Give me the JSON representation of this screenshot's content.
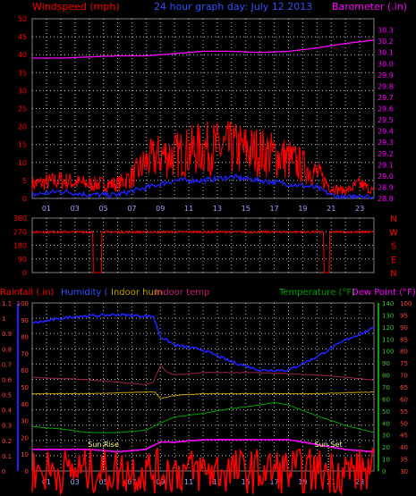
{
  "header": {
    "left_title": "Windspeed (mph)",
    "center_title": "24 hour graph day: July 12 2013",
    "right_title": "Barometer (.in)"
  },
  "colors": {
    "background": "#000000",
    "frame": "#808080",
    "grid": "#c0c0c0",
    "wind_left_axis": "#ff0000",
    "barometer": "#ff00ff",
    "title_blue": "#3050ff",
    "dew_point": "#ff00ff",
    "temperature": "#00a000",
    "rainfall": "#ff0000",
    "humidity": "#2020ff",
    "indoor_hum": "#c0a000",
    "indoor_temp": "#a02050",
    "sun_label": "#ffff80"
  },
  "x_ticks": [
    "01",
    "03",
    "05",
    "07",
    "09",
    "11",
    "13",
    "15",
    "17",
    "19",
    "21",
    "23"
  ],
  "direction_labels": [
    "N",
    "W",
    "S",
    "E",
    "N"
  ],
  "sun": {
    "rise_label": "Sun Rise",
    "set_label": "Sun Set",
    "rise_hour": 5.0,
    "set_hour": 20.8
  },
  "bottom_header": {
    "rainfall_label": "Rainfall (.in)",
    "humidity_label": "Humidity (",
    "indoor_hum_label": "Indoor hum",
    "indoor_temp_label": "Indoor temp",
    "temperature_label": "Temperature (°F)",
    "dew_point_label": "Dew Point (°F)"
  },
  "chart_data": [
    {
      "type": "line",
      "panel": "wind-barometer",
      "x_range": [
        0,
        24
      ],
      "y_left": {
        "label": "Windspeed (mph)",
        "range": [
          0,
          50
        ],
        "ticks": [
          0,
          5,
          10,
          15,
          20,
          25,
          30,
          35,
          40,
          45,
          50
        ]
      },
      "y_right": {
        "label": "Barometer (.in)",
        "range": [
          28.8,
          30.4
        ],
        "ticks": [
          "28.8",
          "28.9",
          "29.0",
          "29.1",
          "29.2",
          "29.3",
          "29.4",
          "29.5",
          "29.6",
          "29.7",
          "29.8",
          "29.9",
          "30.0",
          "30.1",
          "30.2",
          "30.3"
        ]
      },
      "series": [
        {
          "name": "Barometer",
          "axis": "right",
          "x": [
            0,
            2,
            4,
            6,
            8,
            9,
            10,
            12,
            14,
            16,
            18,
            20,
            22,
            24
          ],
          "values": [
            30.05,
            30.05,
            30.06,
            30.07,
            30.07,
            30.08,
            30.09,
            30.11,
            30.11,
            30.1,
            30.11,
            30.14,
            30.18,
            30.21
          ]
        },
        {
          "name": "Gust",
          "axis": "left",
          "x": [
            0,
            2,
            4,
            6,
            7,
            8,
            9,
            10,
            12,
            14,
            16,
            18,
            20,
            21,
            22,
            23,
            24
          ],
          "values": [
            4,
            5,
            4,
            4,
            6,
            10,
            12,
            12,
            14,
            14,
            13,
            11,
            7,
            3,
            2,
            4,
            2
          ]
        },
        {
          "name": "Average",
          "axis": "left",
          "x": [
            0,
            2,
            4,
            6,
            7,
            8,
            9,
            10,
            12,
            14,
            16,
            18,
            20,
            21,
            22,
            23,
            24
          ],
          "values": [
            1,
            2,
            1,
            1,
            2,
            3,
            4,
            5,
            5,
            6,
            5,
            4,
            3,
            1,
            0,
            1,
            0
          ]
        }
      ]
    },
    {
      "type": "line",
      "panel": "wind-direction",
      "y_range": [
        0,
        360
      ],
      "y_ticks": [
        0,
        90,
        180,
        270,
        360
      ],
      "series": [
        {
          "name": "Direction",
          "x": [
            0,
            4.2,
            4.3,
            4.8,
            4.9,
            24
          ],
          "values": [
            270,
            270,
            0,
            0,
            270,
            270
          ]
        }
      ]
    },
    {
      "type": "line",
      "panel": "temperature-humidity-rain",
      "y_far_left": {
        "label": "Rainfall (.in)",
        "range": [
          0,
          1.1
        ],
        "ticks": [
          "0",
          "0.1",
          "0.2",
          "0.3",
          "0.4",
          "0.5",
          "0.6",
          "0.7",
          "0.8",
          "0.9",
          "1",
          "1.1"
        ]
      },
      "y_left": {
        "label": "Humidity",
        "range": [
          0,
          100
        ],
        "ticks": [
          0,
          10,
          20,
          30,
          40,
          50,
          60,
          70,
          80,
          90,
          100
        ]
      },
      "y_right_inner": {
        "label": "Temperature (°F)",
        "range": [
          0,
          140
        ],
        "ticks": [
          0,
          10,
          20,
          30,
          40,
          50,
          60,
          70,
          80,
          90,
          100,
          110,
          120,
          130,
          140
        ]
      },
      "y_right_outer": {
        "label": "Dew Point (°F)",
        "range": [
          30,
          100
        ],
        "ticks": [
          30,
          35,
          40,
          45,
          50,
          55,
          60,
          65,
          70,
          75,
          80,
          85,
          90,
          95,
          100
        ]
      },
      "series": [
        {
          "name": "Humidity",
          "axis": "left",
          "x": [
            0,
            3,
            6,
            8.5,
            9,
            10,
            12,
            14,
            16,
            18,
            20,
            22,
            24
          ],
          "values": [
            88,
            92,
            93,
            92,
            80,
            75,
            72,
            65,
            60,
            60,
            68,
            78,
            85
          ]
        },
        {
          "name": "Indoor hum",
          "axis": "left",
          "x": [
            0,
            4,
            8,
            8.6,
            9,
            10,
            12,
            16,
            20,
            24
          ],
          "values": [
            46,
            46,
            47,
            47,
            43,
            45,
            46,
            46,
            46,
            47
          ]
        },
        {
          "name": "Indoor temp",
          "axis": "right_outer",
          "x": [
            0,
            4,
            8,
            8.5,
            9,
            9.5,
            10,
            12,
            16,
            20,
            24
          ],
          "values": [
            69,
            68,
            66,
            67,
            74,
            71,
            70,
            71,
            71,
            70,
            68
          ]
        },
        {
          "name": "Temperature",
          "axis": "right_inner",
          "x": [
            0,
            2,
            4,
            6,
            8,
            9,
            10,
            12,
            14,
            16,
            17,
            18,
            20,
            22,
            24
          ],
          "values": [
            37,
            35,
            32,
            32,
            34,
            40,
            45,
            48,
            52,
            55,
            57,
            55,
            46,
            38,
            32
          ]
        },
        {
          "name": "Dew Point",
          "axis": "right_outer",
          "x": [
            0,
            4,
            6,
            8,
            9,
            10,
            12,
            14,
            16,
            18,
            20,
            22,
            24
          ],
          "values": [
            39,
            39,
            38,
            39,
            42,
            42,
            43,
            43,
            43,
            43,
            41,
            39,
            38
          ]
        },
        {
          "name": "Rainfall",
          "axis": "far_left",
          "x": [
            0,
            24
          ],
          "values": [
            0,
            0
          ]
        }
      ]
    }
  ]
}
